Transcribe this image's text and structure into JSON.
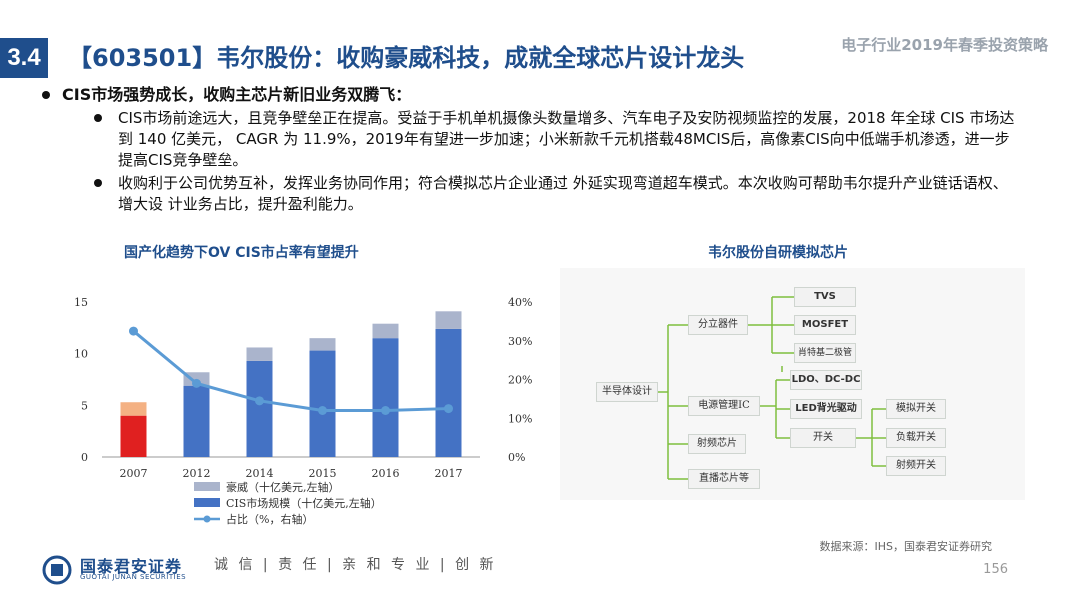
{
  "header": {
    "section": "3.4",
    "title": "【603501】韦尔股份：收购豪威科技，成就全球芯片设计龙头",
    "report_name": "电子行业2019年春季投资策略"
  },
  "bullets": {
    "main": "CIS市场强势成长，收购主芯片新旧业务双腾飞：",
    "sub": [
      "CIS市场前途远大，且竞争壁垒正在提高。受益于手机单机摄像头数量增多、汽车电子及安防视频监控的发展，2018 年全球 CIS 市场达到 140 亿美元， CAGR 为 11.9%，2019年有望进一步加速；小米新款千元机搭载48MCIS后，高像素CIS向中低端手机渗透，进一步提高CIS竞争壁垒。",
      "收购利于公司优势互补，发挥业务协同作用；符合模拟芯片企业通过 外延实现弯道超车模式。本次收购可帮助韦尔提升产业链话语权、增大设 计业务占比，提升盈利能力。"
    ]
  },
  "chart_title": "国产化趋势下OV CIS市占率有望提升",
  "diagram_title": "韦尔股份自研模拟芯片",
  "chart_data": {
    "type": "bar",
    "categories": [
      "2007",
      "2012",
      "2014",
      "2015",
      "2016",
      "2017"
    ],
    "series": [
      {
        "name": "CIS市场规模（十亿美元,左轴）",
        "type": "bar",
        "stack": "s",
        "values": [
          4.0,
          6.9,
          9.3,
          10.3,
          11.5,
          12.4
        ],
        "colors": [
          "#e02020",
          "#4472c4",
          "#4472c4",
          "#4472c4",
          "#4472c4",
          "#4472c4"
        ]
      },
      {
        "name": "豪威（十亿美元,左轴）",
        "type": "bar",
        "stack": "s",
        "values": [
          1.3,
          1.3,
          1.3,
          1.2,
          1.4,
          1.7
        ],
        "colors": [
          "#f4b183",
          "#aab4cc",
          "#aab4cc",
          "#aab4cc",
          "#aab4cc",
          "#aab4cc"
        ]
      },
      {
        "name": "占比（%，右轴）",
        "type": "line",
        "axis": "right",
        "values": [
          32.5,
          19,
          14.5,
          12,
          12,
          12.5
        ],
        "color": "#5b9bd5"
      }
    ],
    "left_axis": {
      "min": 0,
      "max": 15,
      "ticks": [
        "0",
        "5",
        "10",
        "15"
      ]
    },
    "right_axis": {
      "min": 0,
      "max": 40,
      "ticks": [
        "0%",
        "10%",
        "20%",
        "30%",
        "40%"
      ]
    },
    "legend": [
      "豪威（十亿美元,左轴）",
      "CIS市场规模（十亿美元,左轴）",
      "占比（%，右轴）"
    ],
    "legend_position": "bottom"
  },
  "diagram": {
    "root": "半导体设计",
    "level1": [
      "分立器件",
      "电源管理IC",
      "射频芯片",
      "直播芯片等"
    ],
    "discrete_children": [
      "TVS",
      "MOSFET",
      "肖特基二极管"
    ],
    "power_children": [
      "LDO、DC-DC",
      "LED背光驱动",
      "开关"
    ],
    "switch_children": [
      "模拟开关",
      "负载开关",
      "射频开关"
    ]
  },
  "source": "数据来源：IHS，国泰君安证券研究",
  "page_number": "156",
  "footer": {
    "logo_cn": "国泰君安证券",
    "logo_en": "GUOTAI JUNAN SECURITIES",
    "slogan": "诚 信 | 责 任 | 亲 和  专 业 | 创 新"
  },
  "colors": {
    "brand": "#1f4e8c",
    "bar": "#4472c4",
    "bar_top": "#aab4cc",
    "line": "#5b9bd5",
    "highlight": "#e02020"
  }
}
